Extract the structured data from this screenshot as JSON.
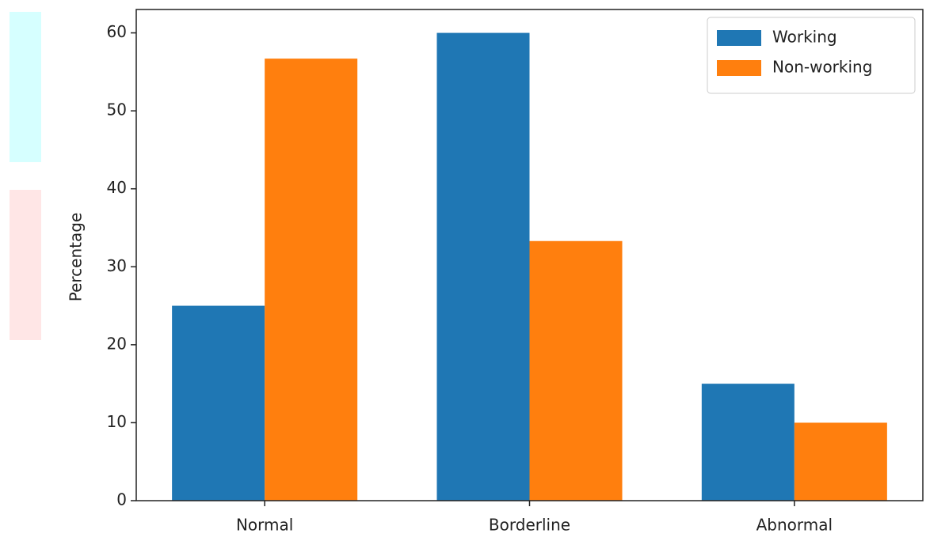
{
  "chart_data": {
    "type": "bar",
    "y_label": "Percentage",
    "categories": [
      "Normal",
      "Borderline",
      "Abnormal"
    ],
    "series": [
      {
        "name": "Working",
        "color": "#1f77b4",
        "values": [
          25,
          60,
          15
        ]
      },
      {
        "name": "Non-working",
        "color": "#ff7f0e",
        "values": [
          56.7,
          33.3,
          10
        ]
      }
    ],
    "ylim": [
      0,
      63
    ],
    "yticks": [
      0,
      10,
      20,
      30,
      40,
      50,
      60
    ],
    "legend": "upper right"
  }
}
